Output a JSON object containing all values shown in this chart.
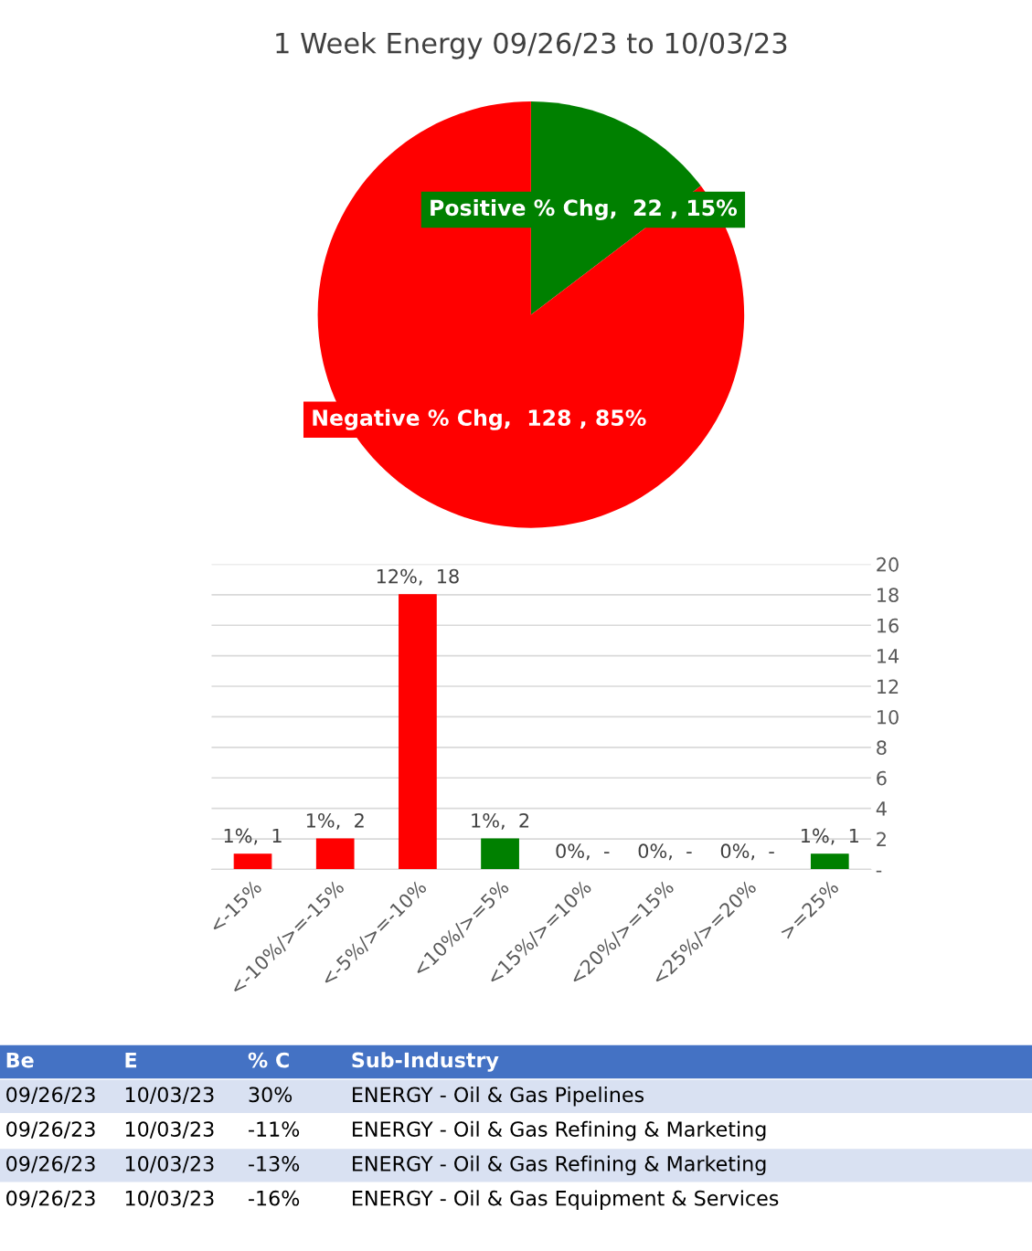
{
  "chart_data": [
    {
      "type": "pie",
      "title": "1 Week Energy 09/26/23 to 10/03/23",
      "categories": [
        "Positive % Chg",
        "Negative % Chg"
      ],
      "values": [
        22,
        128
      ],
      "value_labels": [
        ",  22 , 15%",
        ",  128 , 85%"
      ],
      "colors": [
        "#008000",
        "#ff0000"
      ]
    },
    {
      "type": "bar",
      "categories": [
        "<-15%",
        "<-10%/>=-15%",
        "<-5%/>=-10%",
        "<10%/>=5%",
        "<15%/>=10%",
        "<20%/>=15%",
        "<25%/>=20%",
        ">=25%"
      ],
      "values": [
        1,
        2,
        18,
        2,
        0,
        0,
        0,
        1
      ],
      "colors": [
        "#ff0000",
        "#ff0000",
        "#ff0000",
        "#008000",
        "#008000",
        "#008000",
        "#008000",
        "#008000"
      ],
      "value_labels": [
        "1%,  1",
        "1%,  2",
        "12%,  18",
        "1%,  2",
        "0%,  -",
        "0%,  -",
        "0%,  -",
        "1%,  1"
      ],
      "ylim": [
        0,
        20
      ],
      "yticks": [
        {
          "value": 0,
          "label": "-"
        },
        2,
        4,
        6,
        8,
        10,
        12,
        14,
        16,
        18,
        20
      ],
      "grid": "y"
    },
    {
      "type": "other",
      "categories": [
        "Be",
        "E",
        "% C",
        "Sub-Industry"
      ],
      "annotations": [
        "09/26/23",
        "10/03/23",
        "30%",
        "ENERGY - Oil & Gas Pipelines",
        "09/26/23",
        "10/03/23",
        "-11%",
        "ENERGY - Oil & Gas Refining & Marketing",
        "09/26/23",
        "10/03/23",
        "-13%",
        "ENERGY - Oil & Gas Refining & Marketing",
        "09/26/23",
        "10/03/23",
        "-16%",
        "ENERGY - Oil & Gas Equipment & Services"
      ]
    }
  ]
}
